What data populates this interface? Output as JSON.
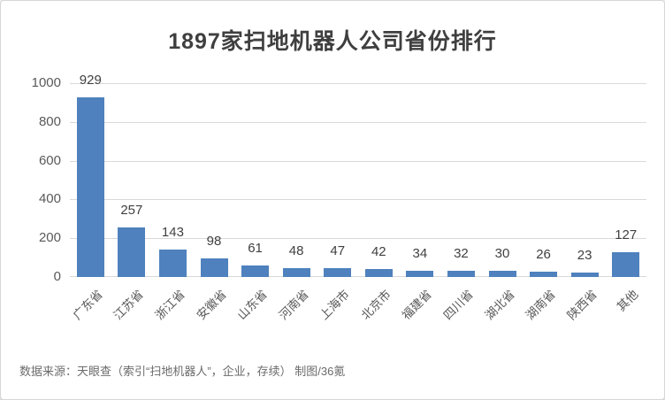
{
  "page": {
    "title": "1897家扫地机器人公司省份排行",
    "source_note": "数据来源：天眼查（索引“扫地机器人”，企业，存续） 制图/36氪"
  },
  "chart_data": {
    "type": "bar",
    "title": "1897家扫地机器人公司省份排行",
    "categories": [
      "广东省",
      "江苏省",
      "浙江省",
      "安徽省",
      "山东省",
      "河南省",
      "上海市",
      "北京市",
      "福建省",
      "四川省",
      "湖北省",
      "湖南省",
      "陕西省",
      "其他"
    ],
    "values": [
      929,
      257,
      143,
      98,
      61,
      48,
      47,
      42,
      34,
      32,
      30,
      26,
      23,
      127
    ],
    "total": 1897,
    "xlabel": "",
    "ylabel": "",
    "ylim": [
      0,
      1000
    ],
    "yticks": [
      0,
      200,
      400,
      600,
      800,
      1000
    ],
    "grid": true,
    "legend": false,
    "value_labels": true,
    "x_label_rotation_deg": 45,
    "bar_color": "#4e81bd",
    "gridline_color": "#d9d9d9",
    "label_color": "#404040",
    "tick_color": "#595959"
  }
}
